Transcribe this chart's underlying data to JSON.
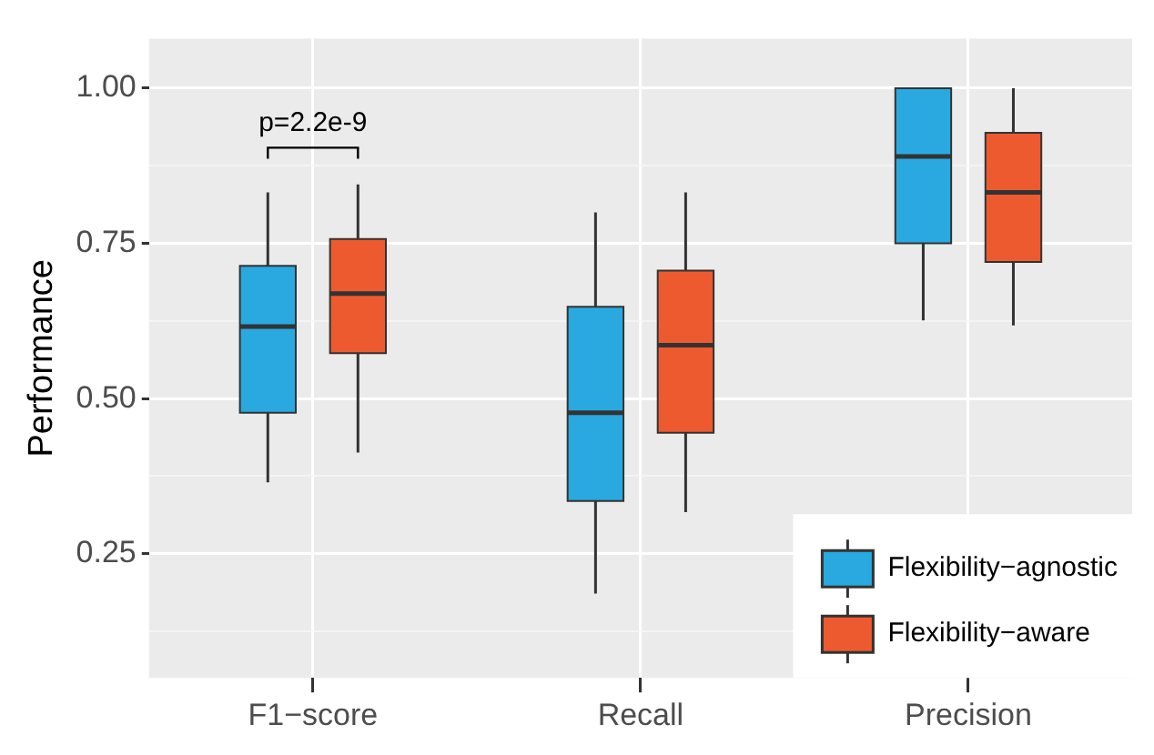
{
  "chart_data": {
    "type": "box",
    "ylabel": "Performance",
    "categories": [
      "F1−score",
      "Recall",
      "Precision"
    ],
    "series": [
      {
        "name": "Flexibility−agnostic",
        "color": "#29a9df",
        "boxes": [
          {
            "low": 0.365,
            "q1": 0.477,
            "median": 0.616,
            "q3": 0.714,
            "high": 0.832
          },
          {
            "low": 0.186,
            "q1": 0.335,
            "median": 0.477,
            "q3": 0.648,
            "high": 0.8
          },
          {
            "low": 0.626,
            "q1": 0.75,
            "median": 0.89,
            "q3": 1.0,
            "high": 1.0
          }
        ]
      },
      {
        "name": "Flexibility−aware",
        "color": "#ee5a2f",
        "boxes": [
          {
            "low": 0.413,
            "q1": 0.573,
            "median": 0.669,
            "q3": 0.757,
            "high": 0.845
          },
          {
            "low": 0.317,
            "q1": 0.445,
            "median": 0.586,
            "q3": 0.706,
            "high": 0.832
          },
          {
            "low": 0.618,
            "q1": 0.72,
            "median": 0.832,
            "q3": 0.928,
            "high": 1.0
          }
        ]
      }
    ],
    "ylim": [
      0.05,
      1.08
    ],
    "yticks": [
      {
        "value": 0.125,
        "label": null
      },
      {
        "value": 0.25,
        "label": "0.25"
      },
      {
        "value": 0.375,
        "label": null
      },
      {
        "value": 0.5,
        "label": "0.50"
      },
      {
        "value": 0.625,
        "label": null
      },
      {
        "value": 0.75,
        "label": "0.75"
      },
      {
        "value": 0.875,
        "label": null
      },
      {
        "value": 1.0,
        "label": "1.00"
      }
    ],
    "grid": true,
    "legend": "bottom right",
    "annotations": [
      "p=2.2e-9"
    ]
  }
}
